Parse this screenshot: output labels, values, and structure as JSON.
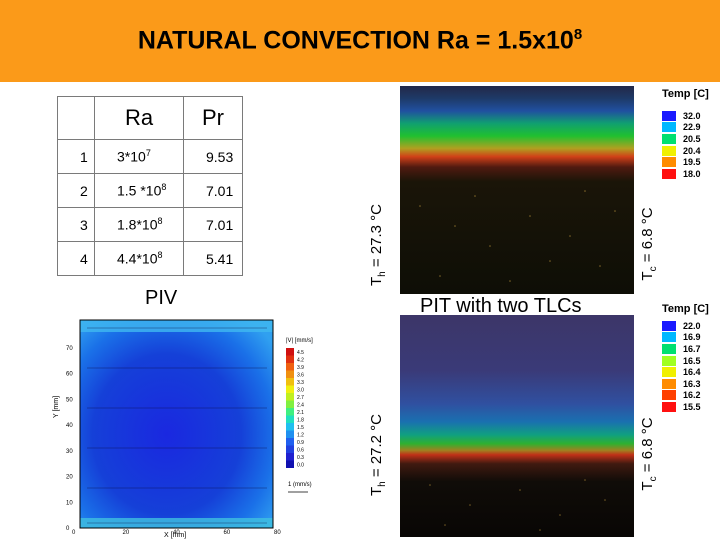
{
  "header": {
    "title_main": "NATURAL CONVECTION  Ra = 1.5x10",
    "title_exp": "8",
    "bg_color": "#fb9a19"
  },
  "table": {
    "col_ra": "Ra",
    "col_pr": "Pr",
    "rows": [
      {
        "id": "1",
        "ra_base": "3*10",
        "ra_exp": "7",
        "pr": "9.53"
      },
      {
        "id": "2",
        "ra_base": "1.5 *10",
        "ra_exp": "8",
        "pr": "7.01"
      },
      {
        "id": "3",
        "ra_base": "1.8*10",
        "ra_exp": "8",
        "pr": "7.01"
      },
      {
        "id": "4",
        "ra_base": "4.4*10",
        "ra_exp": "8",
        "pr": "5.41"
      }
    ]
  },
  "labels": {
    "piv": "PIV",
    "pit": "PIT with two TLCs",
    "th_top_pre": "T",
    "th_top_sub": "h",
    "th_top_val": " = 27.3 °C",
    "tc_top_pre": "T",
    "tc_top_sub": "c",
    "tc_top_val": " = 6.8 °C",
    "th_bot_pre": "T",
    "th_bot_sub": "h",
    "th_bot_val": " = 27.2 °C",
    "tc_bot_pre": "T",
    "tc_bot_sub": "c",
    "tc_bot_val": " = 6.8 °C"
  },
  "legend_top": {
    "title": "Temp [C]",
    "values": [
      "32.0",
      "22.9",
      "20.5",
      "20.4",
      "19.5",
      "18.0"
    ],
    "colors": [
      "#1a1aff",
      "#00b8ff",
      "#00e070",
      "#f0f000",
      "#ff8c00",
      "#ff1010"
    ]
  },
  "legend_bottom": {
    "title": "Temp [C]",
    "values": [
      "22.0",
      "16.9",
      "16.7",
      "16.5",
      "16.4",
      "16.3",
      "16.2",
      "15.5"
    ],
    "colors": [
      "#1a1aff",
      "#00b8ff",
      "#00e070",
      "#a0ff20",
      "#f0f000",
      "#ff8c00",
      "#ff4000",
      "#ff1010"
    ]
  },
  "piv_plot": {
    "y_axis_label": "Y [mm]",
    "x_axis_label": "X [mm]",
    "y_ticks": [
      "70",
      "60",
      "50",
      "40",
      "30",
      "20",
      "10",
      "0"
    ],
    "x_ticks": [
      "0",
      "20",
      "40",
      "60",
      "80"
    ],
    "colorbar_title": "|V| [mm/s]",
    "colorbar_values": [
      "4.5",
      "4.2",
      "3.9",
      "3.6",
      "3.3",
      "3.0",
      "2.7",
      "2.4",
      "2.1",
      "1.8",
      "1.5",
      "1.2",
      "0.9",
      "0.6",
      "0.3",
      "0.0"
    ],
    "scale_label": "1 (mm/s)"
  }
}
